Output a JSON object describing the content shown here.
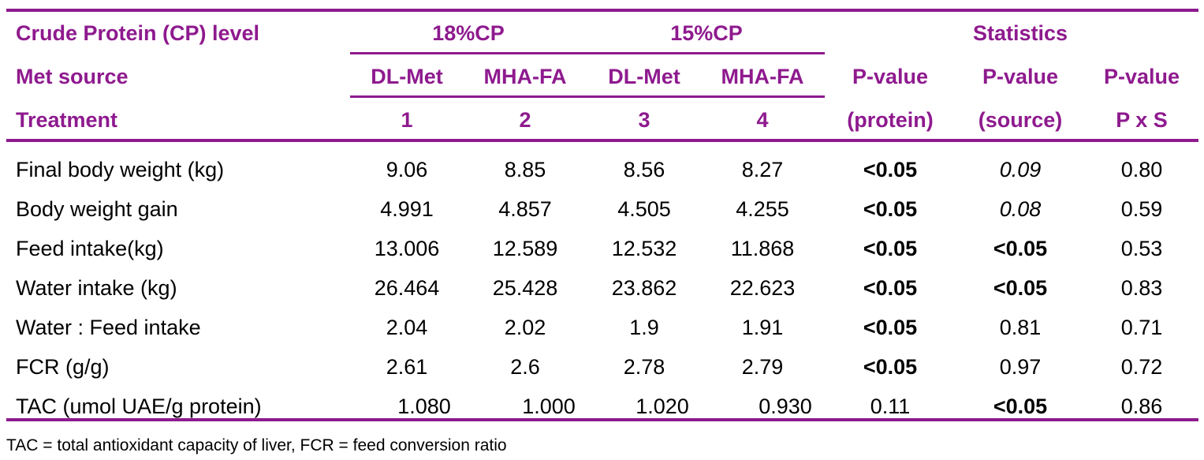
{
  "header": {
    "row1": {
      "label": "Crude Protein (CP) level",
      "group1": "18%CP",
      "group2": "15%CP",
      "stats": "Statistics"
    },
    "row2": {
      "label": "Met source",
      "col1": "DL-Met",
      "col2": "MHA-FA",
      "col3": "DL-Met",
      "col4": "MHA-FA",
      "p1": "P-value",
      "p2": "P-value",
      "p3": "P-value"
    },
    "row3": {
      "label": "Treatment",
      "col1": "1",
      "col2": "2",
      "col3": "3",
      "col4": "4",
      "p1": "(protein)",
      "p2": "(source)",
      "p3": "P x S"
    }
  },
  "rows": [
    {
      "label": "Final body weight (kg)",
      "values": [
        "9.06",
        "8.85",
        "8.56",
        "8.27",
        "<0.05",
        "0.09",
        "0.80"
      ]
    },
    {
      "label": "Body weight gain",
      "values": [
        "4.991",
        "4.857",
        "4.505",
        "4.255",
        "<0.05",
        "0.08",
        "0.59"
      ]
    },
    {
      "label": "Feed intake(kg)",
      "values": [
        "13.006",
        "12.589",
        "12.532",
        "11.868",
        "<0.05",
        "<0.05",
        "0.53"
      ]
    },
    {
      "label": "Water intake (kg)",
      "values": [
        "26.464",
        "25.428",
        "23.862",
        "22.623",
        "<0.05",
        "<0.05",
        "0.83"
      ]
    },
    {
      "label": "Water : Feed intake",
      "values": [
        "2.04",
        "2.02",
        "1.9",
        "1.91",
        "<0.05",
        "0.81",
        "0.71"
      ]
    },
    {
      "label": "FCR (g/g)",
      "values": [
        "2.61",
        "2.6",
        "2.78",
        "2.79",
        "<0.05",
        "0.97",
        "0.72"
      ]
    },
    {
      "label": "TAC (umol UAE/g protein)",
      "values": [
        "1.080",
        "1.000",
        "1.020",
        "0.930",
        "0.11",
        "<0.05",
        "0.86"
      ]
    }
  ],
  "footnote": "TAC = total antioxidant capacity of liver, FCR = feed conversion ratio",
  "colors": {
    "accent": "#8e1a8e"
  }
}
